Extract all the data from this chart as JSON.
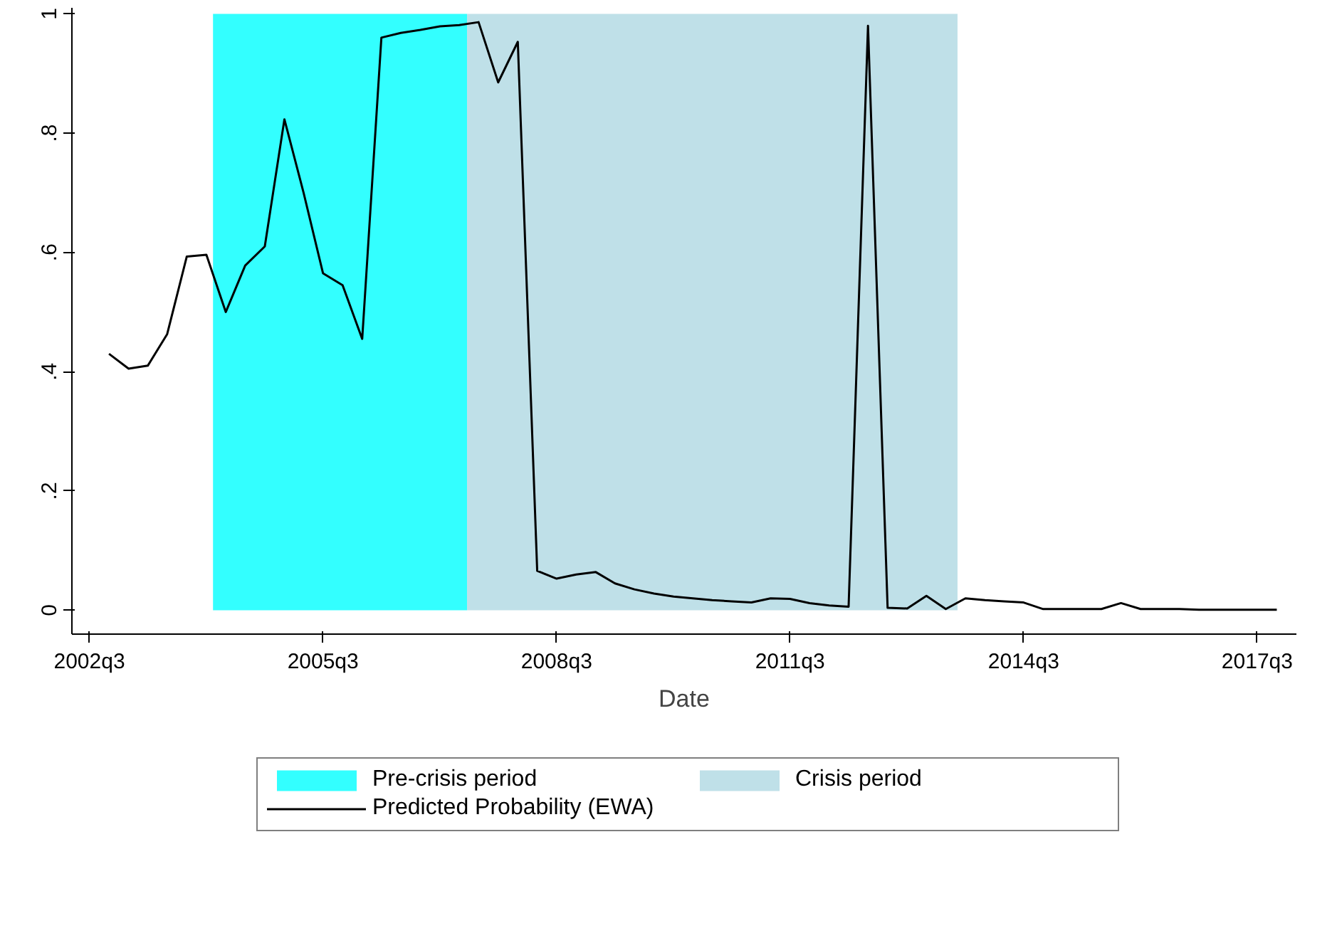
{
  "chart_data": {
    "type": "line",
    "xlabel": "Date",
    "x": [
      "2002-10",
      "2003-01",
      "2003-04",
      "2003-07",
      "2003-10",
      "2004-01",
      "2004-04",
      "2004-07",
      "2004-10",
      "2005-01",
      "2005-04",
      "2005-07",
      "2005-10",
      "2006-01",
      "2006-04",
      "2006-07",
      "2006-10",
      "2007-01",
      "2007-04",
      "2007-07",
      "2007-10",
      "2008-01",
      "2008-04",
      "2008-07",
      "2008-10",
      "2009-01",
      "2009-04",
      "2009-07",
      "2009-10",
      "2010-01",
      "2010-04",
      "2010-07",
      "2010-10",
      "2011-01",
      "2011-04",
      "2011-07",
      "2011-10",
      "2012-01",
      "2012-04",
      "2012-07",
      "2012-10",
      "2013-01",
      "2013-04",
      "2013-07",
      "2013-10",
      "2014-01",
      "2014-04",
      "2014-07",
      "2014-10",
      "2015-01",
      "2015-04",
      "2015-07",
      "2015-10",
      "2016-01",
      "2016-04",
      "2016-07",
      "2016-10",
      "2017-01",
      "2017-04",
      "2017-07",
      "2017-10"
    ],
    "series": [
      {
        "name": "Predicted Probability (EWA)",
        "color": "#000000",
        "values": [
          0.43,
          0.405,
          0.41,
          0.463,
          0.593,
          0.596,
          0.5,
          0.578,
          0.61,
          0.823,
          0.7,
          0.565,
          0.545,
          0.455,
          0.96,
          0.968,
          0.973,
          0.979,
          0.981,
          0.986,
          0.885,
          0.953,
          0.066,
          0.053,
          0.06,
          0.064,
          0.045,
          0.035,
          0.028,
          0.023,
          0.02,
          0.017,
          0.015,
          0.013,
          0.02,
          0.019,
          0.012,
          0.008,
          0.006,
          0.98,
          0.004,
          0.003,
          0.024,
          0.002,
          0.02,
          0.017,
          0.015,
          0.013,
          0.002,
          0.002,
          0.002,
          0.002,
          0.012,
          0.002,
          0.002,
          0.002,
          0.001,
          0.001,
          0.001,
          0.001,
          0.001
        ]
      }
    ],
    "bands": [
      {
        "axis": "x",
        "from": "2004-02-01",
        "to": "2007-05-08",
        "label": "Pre-crisis period",
        "color": "#33ffff"
      },
      {
        "axis": "x",
        "from": "2007-05-08",
        "to": "2013-08-25",
        "label": "Crisis period",
        "color": "#bfe0e8"
      }
    ],
    "xlim": [
      "2002-04-10",
      "2018-01-01"
    ],
    "ylim": [
      -0.04,
      1.01
    ],
    "xticks": [
      {
        "value": "2002-07",
        "label": "2002q3"
      },
      {
        "value": "2005-07",
        "label": "2005q3"
      },
      {
        "value": "2008-07",
        "label": "2008q3"
      },
      {
        "value": "2011-07",
        "label": "2011q3"
      },
      {
        "value": "2014-07",
        "label": "2014q3"
      },
      {
        "value": "2017-07",
        "label": "2017q3"
      }
    ],
    "yticks": [
      0,
      {
        "value": 0.2,
        "label": ".2"
      },
      {
        "value": 0.4,
        "label": ".4"
      },
      {
        "value": 0.6,
        "label": ".6"
      },
      {
        "value": 0.8,
        "label": ".8"
      },
      1
    ],
    "grid": false,
    "legend": "bottom",
    "marker": "none",
    "line_style": "solid"
  }
}
